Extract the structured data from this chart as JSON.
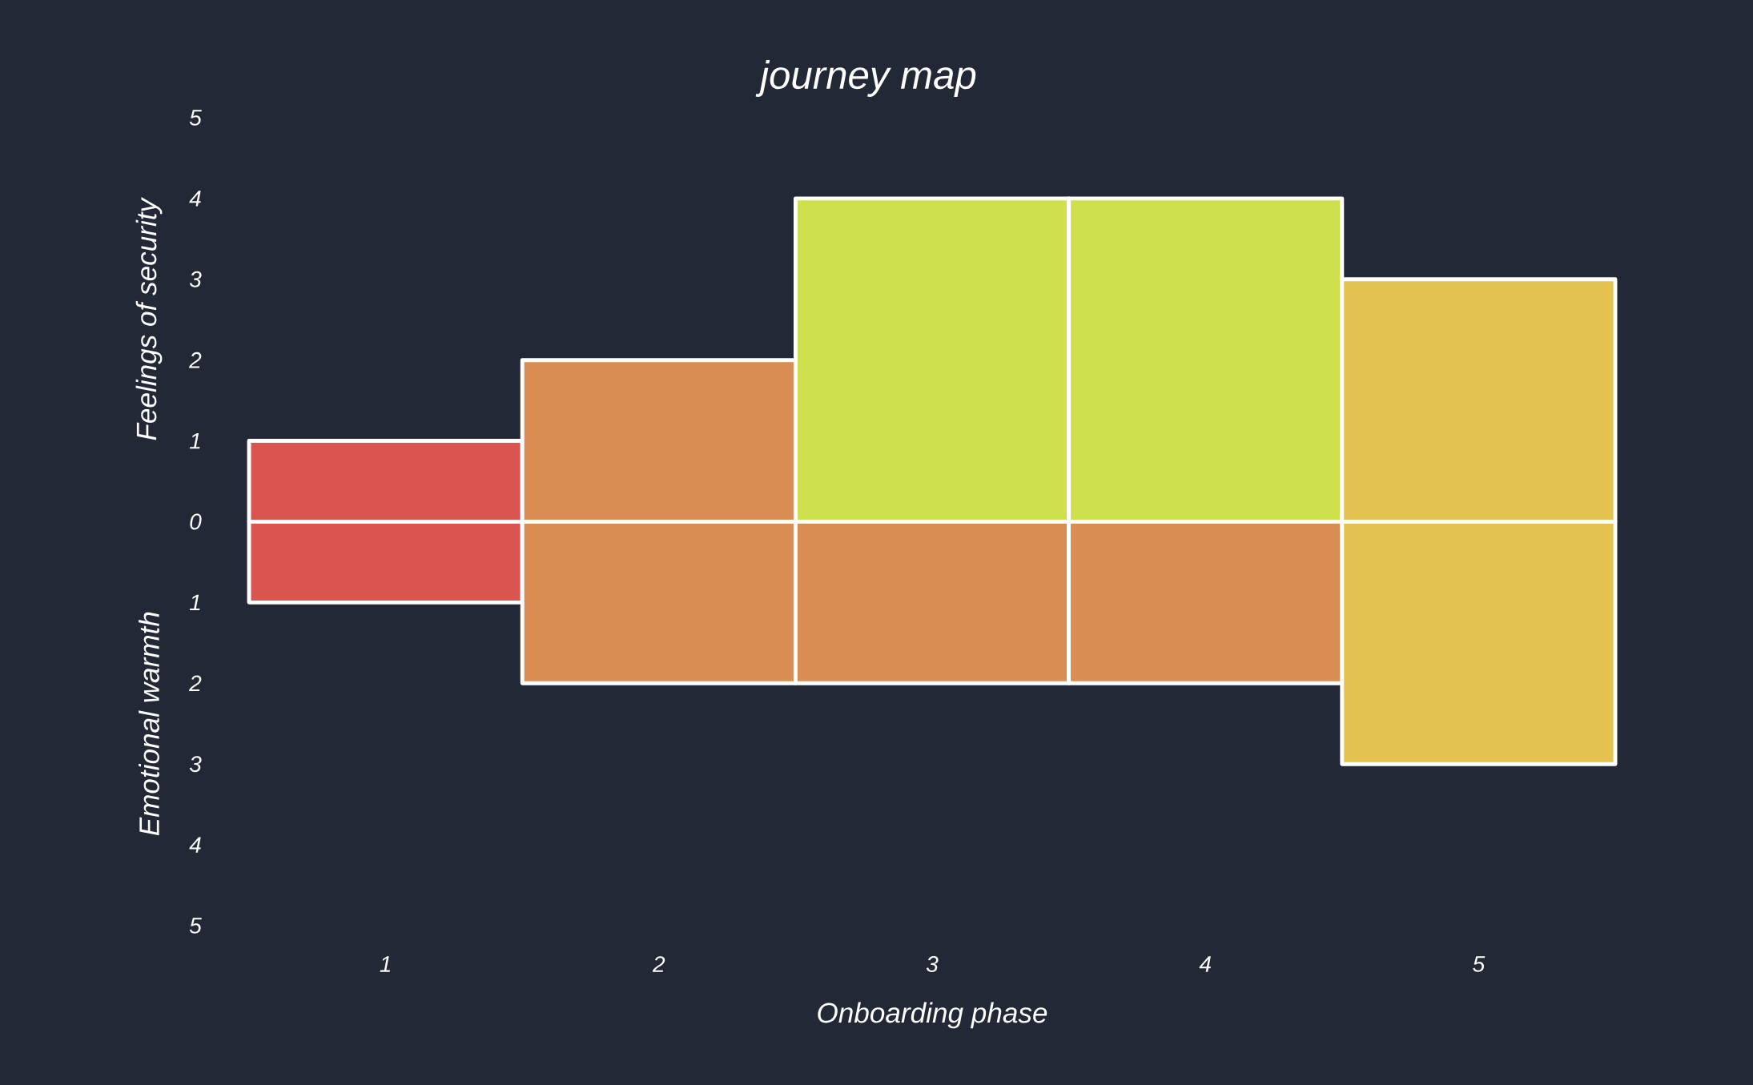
{
  "chart_data": {
    "type": "bar",
    "title": "journey map",
    "xlabel": "Onboarding phase",
    "ylabel": "Feelings of security",
    "annotations": [
      "Emotional warmth"
    ],
    "categories": [
      "1",
      "2",
      "3",
      "4",
      "5"
    ],
    "stacked": true,
    "series": [
      {
        "values": [
          1,
          2,
          4,
          4,
          3
        ],
        "colors": [
          "#db5450",
          "#da8d52",
          "#cfe04e",
          "#cfe04e",
          "#e3c24f"
        ]
      },
      {
        "values": [
          -1,
          -2,
          -2,
          -2,
          -3
        ],
        "colors": [
          "#db5450",
          "#da8d52",
          "#da8d52",
          "#da8d52",
          "#e3c24f"
        ]
      }
    ],
    "ylim": [
      -5,
      5
    ],
    "yticks": [
      {
        "value": -5,
        "label": "5"
      },
      {
        "value": -4,
        "label": "4"
      },
      {
        "value": -3,
        "label": "3"
      },
      {
        "value": -2,
        "label": "2"
      },
      {
        "value": -1,
        "label": "1"
      },
      0,
      1,
      2,
      3,
      4,
      5
    ]
  }
}
